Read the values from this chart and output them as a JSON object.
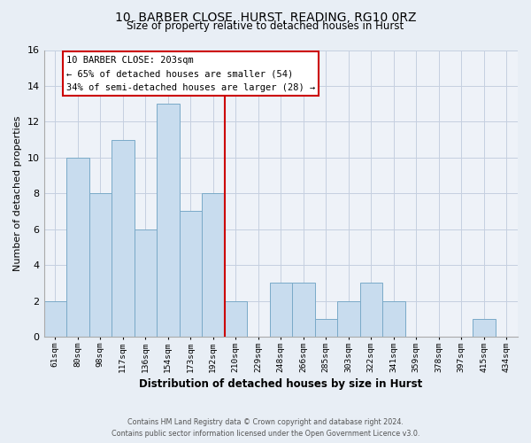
{
  "title": "10, BARBER CLOSE, HURST, READING, RG10 0RZ",
  "subtitle": "Size of property relative to detached houses in Hurst",
  "xlabel": "Distribution of detached houses by size in Hurst",
  "ylabel": "Number of detached properties",
  "bar_color": "#c8dcee",
  "bar_edge_color": "#7aaac8",
  "bin_labels": [
    "61sqm",
    "80sqm",
    "98sqm",
    "117sqm",
    "136sqm",
    "154sqm",
    "173sqm",
    "192sqm",
    "210sqm",
    "229sqm",
    "248sqm",
    "266sqm",
    "285sqm",
    "303sqm",
    "322sqm",
    "341sqm",
    "359sqm",
    "378sqm",
    "397sqm",
    "415sqm",
    "434sqm"
  ],
  "bar_heights": [
    2,
    10,
    8,
    11,
    6,
    13,
    7,
    8,
    2,
    0,
    3,
    3,
    1,
    2,
    3,
    2,
    0,
    0,
    0,
    1,
    0
  ],
  "ylim": [
    0,
    16
  ],
  "yticks": [
    0,
    2,
    4,
    6,
    8,
    10,
    12,
    14,
    16
  ],
  "vline_pos": 7.5,
  "vline_color": "#cc0000",
  "annotation_title": "10 BARBER CLOSE: 203sqm",
  "annotation_line1": "← 65% of detached houses are smaller (54)",
  "annotation_line2": "34% of semi-detached houses are larger (28) →",
  "annotation_box_edge": "#cc0000",
  "annotation_box_face": "#ffffff",
  "footer_line1": "Contains HM Land Registry data © Crown copyright and database right 2024.",
  "footer_line2": "Contains public sector information licensed under the Open Government Licence v3.0.",
  "bg_color": "#e8eef5",
  "plot_bg_color": "#eef2f8",
  "grid_color": "#c5cfe0"
}
